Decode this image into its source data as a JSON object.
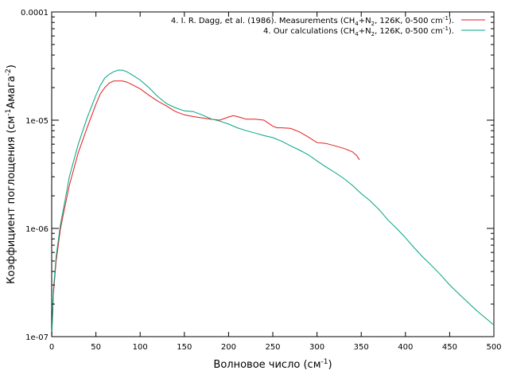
{
  "chart_data": {
    "type": "line",
    "xlabel": "Волновое число (см",
    "xlabel_sup": "-1",
    "xlabel_end": ")",
    "ylabel_parts": [
      "Коэффициент поглощения (см",
      "-1",
      "Амага",
      "-2",
      ")"
    ],
    "xlim": [
      0,
      500
    ],
    "ylim": [
      1e-07,
      0.0001
    ],
    "yscale": "log",
    "x_ticks": [
      "0",
      "50",
      "100",
      "150",
      "200",
      "250",
      "300",
      "350",
      "400",
      "450",
      "500"
    ],
    "x_tick_values": [
      0,
      50,
      100,
      150,
      200,
      250,
      300,
      350,
      400,
      450,
      500
    ],
    "y_ticks": [
      "1e-07",
      "1e-06",
      "1e-05",
      "0.0001"
    ],
    "y_tick_values": [
      1e-07,
      1e-06,
      1e-05,
      0.0001
    ],
    "legend_placement": "top-right",
    "series": [
      {
        "legend_parts": [
          "4. I. R. Dagg, et al. (1986). Measurements (CH",
          "4",
          "+N",
          "2",
          ", 126K, 0-500 cm",
          "-1",
          ")."
        ],
        "color": "#e41a1c",
        "x": [
          0,
          2,
          5,
          10,
          15,
          20,
          30,
          40,
          50,
          55,
          60,
          65,
          70,
          75,
          80,
          85,
          90,
          100,
          110,
          120,
          130,
          140,
          150,
          160,
          170,
          180,
          190,
          200,
          205,
          210,
          215,
          220,
          230,
          240,
          250,
          255,
          260,
          270,
          280,
          290,
          300,
          310,
          320,
          330,
          340,
          345,
          348
        ],
        "y": [
          1e-07,
          2.5e-07,
          5e-07,
          1e-06,
          1.6e-06,
          2.5e-06,
          5e-06,
          8.5e-06,
          1.4e-05,
          1.75e-05,
          2e-05,
          2.2e-05,
          2.3e-05,
          2.3e-05,
          2.3e-05,
          2.25e-05,
          2.15e-05,
          1.95e-05,
          1.7e-05,
          1.5e-05,
          1.35e-05,
          1.2e-05,
          1.12e-05,
          1.08e-05,
          1.05e-05,
          1.02e-05,
          1e-05,
          1.07e-05,
          1.1e-05,
          1.08e-05,
          1.05e-05,
          1.02e-05,
          1.02e-05,
          1e-05,
          8.8e-06,
          8.5e-06,
          8.5e-06,
          8.4e-06,
          7.8e-06,
          7e-06,
          6.2e-06,
          6.1e-06,
          5.8e-06,
          5.5e-06,
          5.1e-06,
          4.7e-06,
          4.3e-06
        ]
      },
      {
        "legend_parts": [
          "4. Our  calculations (CH",
          "4",
          "+N",
          "2",
          ", 126K, 0-500 cm",
          "-1",
          ")."
        ],
        "color": "#00a383",
        "x": [
          0,
          2,
          5,
          10,
          15,
          20,
          30,
          40,
          50,
          55,
          60,
          65,
          70,
          75,
          80,
          85,
          90,
          100,
          110,
          120,
          130,
          140,
          150,
          160,
          170,
          180,
          190,
          200,
          210,
          220,
          230,
          240,
          250,
          260,
          270,
          280,
          290,
          300,
          310,
          320,
          330,
          340,
          350,
          360,
          370,
          380,
          390,
          400,
          410,
          420,
          430,
          440,
          450,
          460,
          470,
          480,
          490,
          500
        ],
        "y": [
          1e-07,
          2.7e-07,
          5.5e-07,
          1.1e-06,
          1.8e-06,
          3e-06,
          6e-06,
          1.05e-05,
          1.7e-05,
          2.1e-05,
          2.45e-05,
          2.65e-05,
          2.8e-05,
          2.9e-05,
          2.9e-05,
          2.8e-05,
          2.65e-05,
          2.35e-05,
          2e-05,
          1.65e-05,
          1.42e-05,
          1.3e-05,
          1.22e-05,
          1.2e-05,
          1.12e-05,
          1.03e-05,
          9.8e-06,
          9.2e-06,
          8.5e-06,
          8e-06,
          7.6e-06,
          7.2e-06,
          6.9e-06,
          6.4e-06,
          5.8e-06,
          5.3e-06,
          4.8e-06,
          4.2e-06,
          3.7e-06,
          3.3e-06,
          2.9e-06,
          2.5e-06,
          2.1e-06,
          1.8e-06,
          1.5e-06,
          1.2e-06,
          1e-06,
          8.2e-07,
          6.6e-07,
          5.4e-07,
          4.5e-07,
          3.7e-07,
          3e-07,
          2.5e-07,
          2.1e-07,
          1.75e-07,
          1.5e-07,
          1.28e-07
        ]
      }
    ]
  }
}
